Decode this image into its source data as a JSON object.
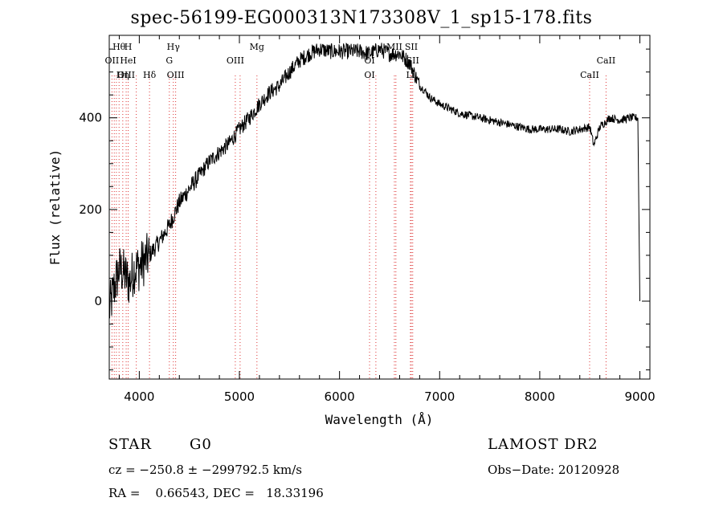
{
  "chart_data": {
    "type": "line",
    "title": "spec-56199-EG000313N173308V_1_sp15-178.fits",
    "xlabel": "Wavelength (Å)",
    "ylabel": "Flux (relative)",
    "xlim": [
      3700,
      9100
    ],
    "ylim": [
      -170,
      580
    ],
    "x_ticks": [
      4000,
      5000,
      6000,
      7000,
      8000,
      9000
    ],
    "y_ticks": [
      0,
      200,
      400
    ],
    "x_tick_labels": [
      "4000",
      "5000",
      "6000",
      "7000",
      "8000",
      "9000"
    ],
    "y_tick_labels": [
      "0",
      "200",
      "400"
    ],
    "grid": false,
    "series": [
      {
        "x": [
          3700,
          3750,
          3800,
          3850,
          3900,
          3950,
          4000,
          4100,
          4200,
          4300,
          4400,
          4500,
          4600,
          4700,
          4800,
          4900,
          5000,
          5100,
          5200,
          5300,
          5400,
          5500,
          5600,
          5700,
          5800,
          5900,
          6000,
          6100,
          6200,
          6300,
          6400,
          6500,
          6600,
          6700,
          6750,
          6800,
          6850,
          6900,
          7000,
          7100,
          7200,
          7300,
          7400,
          7500,
          7600,
          7700,
          7800,
          7900,
          8000,
          8100,
          8200,
          8300,
          8400,
          8500,
          8540,
          8600,
          8700,
          8800,
          8900,
          8980,
          9000
        ],
        "y": [
          -20,
          30,
          70,
          60,
          40,
          70,
          75,
          100,
          130,
          165,
          215,
          245,
          275,
          305,
          325,
          345,
          375,
          400,
          430,
          455,
          470,
          500,
          525,
          540,
          550,
          545,
          545,
          545,
          545,
          540,
          550,
          540,
          540,
          520,
          495,
          470,
          460,
          445,
          430,
          420,
          410,
          405,
          400,
          395,
          390,
          385,
          380,
          375,
          375,
          375,
          375,
          370,
          375,
          380,
          340,
          380,
          400,
          395,
          400,
          400,
          0
        ]
      }
    ],
    "line_annotations": [
      {
        "label": "Hθ",
        "x": 3798,
        "row": 1
      },
      {
        "label": "H",
        "x": 3889,
        "row": 1
      },
      {
        "label": "Hγ",
        "x": 4340,
        "row": 1
      },
      {
        "label": "Mg",
        "x": 5175,
        "row": 1
      },
      {
        "label": "MII",
        "x": 6548,
        "row": 1
      },
      {
        "label": "SII",
        "x": 6717,
        "row": 1
      },
      {
        "label": "OII",
        "x": 3727,
        "row": 2
      },
      {
        "label": "HeI",
        "x": 3889,
        "row": 2
      },
      {
        "label": "G",
        "x": 4300,
        "row": 2
      },
      {
        "label": "OIII",
        "x": 4959,
        "row": 2
      },
      {
        "label": "OI",
        "x": 6300,
        "row": 2
      },
      {
        "label": "SII",
        "x": 6731,
        "row": 2
      },
      {
        "label": "CaII",
        "x": 8662,
        "row": 2
      },
      {
        "label": "OIII",
        "x": 3869,
        "row": 3
      },
      {
        "label": "Hη",
        "x": 3835,
        "row": 3
      },
      {
        "label": "Hδ",
        "x": 4102,
        "row": 3
      },
      {
        "label": "OIII",
        "x": 4363,
        "row": 3
      },
      {
        "label": "OI",
        "x": 6300,
        "row": 3
      },
      {
        "label": "Li",
        "x": 6708,
        "row": 3
      },
      {
        "label": "CaII",
        "x": 8498,
        "row": 3
      }
    ],
    "line_marker_positions": [
      3727,
      3750,
      3771,
      3798,
      3835,
      3869,
      3889,
      3970,
      4102,
      4300,
      4340,
      4363,
      4959,
      5007,
      5175,
      6300,
      6363,
      6548,
      6563,
      6708,
      6717,
      6731,
      8498,
      8662
    ]
  },
  "info": {
    "object_class": "STAR",
    "subclass": "G0",
    "survey": "LAMOST DR2",
    "velocity": "cz = −250.8 ± −299792.5 km/s",
    "obs_date": "Obs−Date: 20120928",
    "coords": "RA =    0.66543, DEC =   18.33196"
  }
}
